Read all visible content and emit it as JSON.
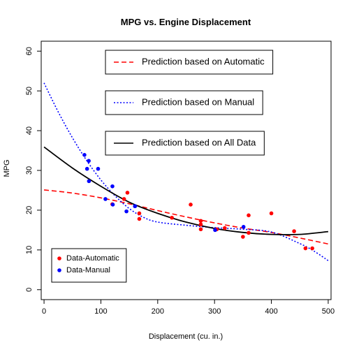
{
  "chart_data": {
    "type": "scatter",
    "title": "MPG vs. Engine Displacement",
    "xlabel": "Displacement (cu. in.)",
    "ylabel": "MPG",
    "xlim": [
      -5,
      505
    ],
    "ylim": [
      -2.5,
      62.5
    ],
    "xticks": [
      0,
      100,
      200,
      300,
      400,
      500
    ],
    "yticks": [
      0,
      10,
      20,
      30,
      40,
      50,
      60
    ],
    "grid": false,
    "series": [
      {
        "name": "Data-Automatic",
        "color": "#FF0000",
        "x": [
          258,
          360,
          225.0,
          360,
          146.7,
          140.8,
          167.6,
          167.6,
          275.8,
          275.8,
          275.8,
          472,
          460,
          440,
          120.1,
          318,
          304,
          350,
          400
        ],
        "y": [
          21.4,
          18.7,
          18.1,
          14.3,
          24.4,
          22.8,
          19.2,
          17.8,
          16.4,
          17.3,
          15.2,
          10.4,
          10.4,
          14.7,
          21.5,
          15.5,
          15.2,
          13.3,
          19.2
        ]
      },
      {
        "name": "Data-Manual",
        "color": "#0000FF",
        "x": [
          160,
          160,
          108,
          78.7,
          75.7,
          71.1,
          79,
          120.3,
          95.1,
          351,
          145,
          301,
          121
        ],
        "y": [
          21.0,
          21.0,
          22.8,
          32.4,
          30.4,
          33.9,
          27.3,
          26.0,
          30.4,
          15.8,
          19.7,
          15.0,
          21.4
        ]
      }
    ],
    "lines": [
      {
        "name": "Prediction based on Automatic",
        "color": "#FF0000",
        "style": "dashed",
        "x": [
          0,
          50,
          100,
          150,
          200,
          250,
          300,
          350,
          400,
          450,
          500
        ],
        "y": [
          25.1,
          24.3,
          23.1,
          21.6,
          19.9,
          18.3,
          16.8,
          15.5,
          14.4,
          13.0,
          11.5
        ]
      },
      {
        "name": "Prediction based on Manual",
        "color": "#0000FF",
        "style": "dotted",
        "x": [
          0,
          25,
          50,
          75,
          100,
          125,
          150,
          175,
          200,
          250,
          300,
          350,
          400,
          450,
          475,
          500
        ],
        "y": [
          52.0,
          44.7,
          38.2,
          32.5,
          27.6,
          23.6,
          20.4,
          18.2,
          17.0,
          16.2,
          15.6,
          15.2,
          14.5,
          11.6,
          9.7,
          7.3
        ]
      },
      {
        "name": "Prediction based on All Data",
        "color": "#000000",
        "style": "solid",
        "x": [
          0,
          50,
          100,
          150,
          200,
          250,
          300,
          350,
          400,
          450,
          500
        ],
        "y": [
          35.9,
          30.6,
          26.0,
          22.0,
          19.2,
          17.0,
          15.4,
          14.4,
          13.9,
          13.9,
          14.6
        ]
      }
    ],
    "line_legends": [
      {
        "label": "Prediction based on Automatic",
        "color": "#FF0000",
        "style": "dashed"
      },
      {
        "label": "Prediction based on Manual",
        "color": "#0000FF",
        "style": "dotted"
      },
      {
        "label": "Prediction based on All Data",
        "color": "#000000",
        "style": "solid"
      }
    ],
    "point_legend": {
      "placement": "bottom-left",
      "entries": [
        {
          "label": "Data-Automatic",
          "color": "#FF0000"
        },
        {
          "label": "Data-Manual",
          "color": "#0000FF"
        }
      ]
    }
  }
}
